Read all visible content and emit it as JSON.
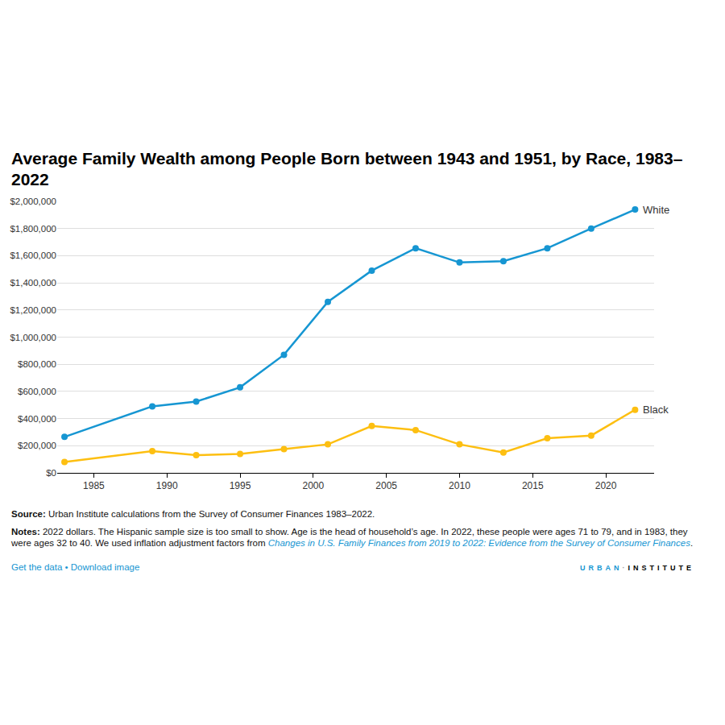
{
  "chart_data": {
    "type": "line",
    "title": "Average Family Wealth among People Born between 1943 and 1951, by Race, 1983–2022",
    "x": [
      1983,
      1989,
      1992,
      1995,
      1998,
      2001,
      2004,
      2007,
      2010,
      2013,
      2016,
      2019,
      2022
    ],
    "series": [
      {
        "name": "White",
        "color": "#1696d2",
        "marker": "circle",
        "line_style": "solid",
        "values": [
          265000,
          490000,
          525000,
          630000,
          870000,
          1260000,
          1490000,
          1655000,
          1550000,
          1560000,
          1655000,
          1800000,
          1940000
        ]
      },
      {
        "name": "Black",
        "color": "#fdbf11",
        "marker": "circle",
        "line_style": "solid",
        "values": [
          80000,
          160000,
          130000,
          140000,
          175000,
          210000,
          345000,
          315000,
          210000,
          150000,
          255000,
          275000,
          465000
        ]
      }
    ],
    "xlim": [
      1982.5,
      2023.3
    ],
    "xticks": [
      1985,
      1990,
      1995,
      2000,
      2005,
      2010,
      2015,
      2020
    ],
    "ylim": [
      0,
      2000000
    ],
    "yticks": [
      {
        "value": 0,
        "label": "$0"
      },
      {
        "value": 200000,
        "label": "$200,000"
      },
      {
        "value": 400000,
        "label": "$400,000"
      },
      {
        "value": 600000,
        "label": "$600,000"
      },
      {
        "value": 800000,
        "label": "$800,000"
      },
      {
        "value": 1000000,
        "label": "$1,000,000"
      },
      {
        "value": 1200000,
        "label": "$1,200,000"
      },
      {
        "value": 1400000,
        "label": "$1,400,000"
      },
      {
        "value": 1600000,
        "label": "$1,600,000"
      },
      {
        "value": 1800000,
        "label": "$1,800,000"
      },
      {
        "value": 2000000,
        "label": "$2,000,000"
      }
    ],
    "grid": true,
    "source_label": "Source:",
    "source": "Urban Institute calculations from the Survey of Consumer Finances 1983–2022.",
    "notes_label": "Notes:",
    "notes": "2022 dollars. The Hispanic sample size is too small to show. Age is the head of household’s age. In 2022, these people were ages 71 to 79, and in 1983, they were ages 32 to 40. We used inflation adjustment factors from",
    "notes_link": "Changes in U.S. Family Finances from 2019 to 2022: Evidence from the Survey of Consumer Finances",
    "notes_end": ".",
    "links": [
      "Get the data",
      "•",
      "Download image"
    ],
    "logo": [
      "URBAN",
      "·",
      "INSTITUTE"
    ]
  }
}
